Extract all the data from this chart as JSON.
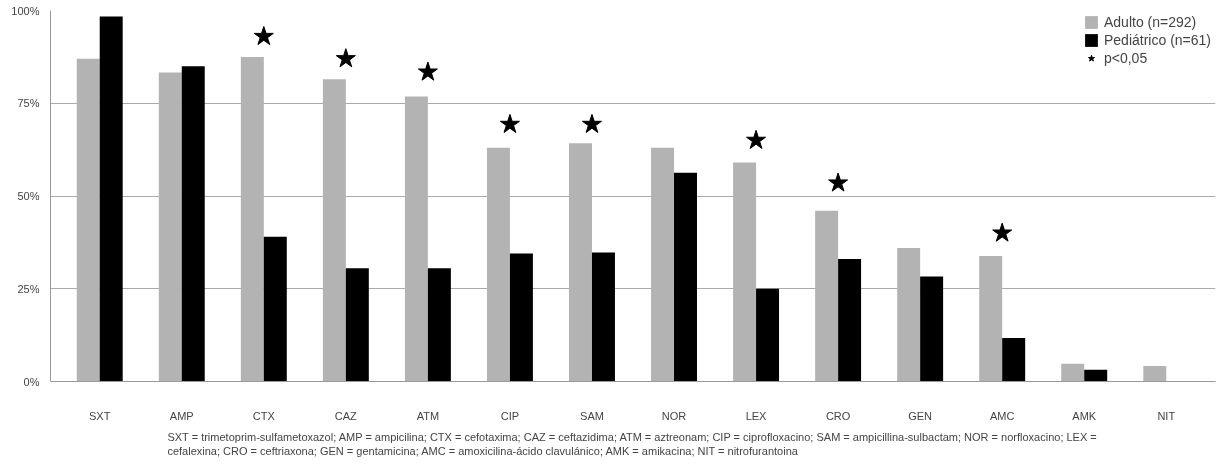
{
  "chart_data": {
    "type": "bar",
    "categories": [
      "SXT",
      "AMP",
      "CTX",
      "CAZ",
      "ATM",
      "CIP",
      "SAM",
      "NOR",
      "LEX",
      "CRO",
      "GEN",
      "AMC",
      "AMK",
      "NIT"
    ],
    "series": [
      {
        "name": "Adulto (n=292)",
        "color": "#b3b3b3",
        "values": [
          87,
          83.3,
          87.5,
          81.5,
          76.8,
          63,
          64.2,
          63,
          59,
          46,
          36,
          33.8,
          4.8,
          4.2
        ]
      },
      {
        "name": "Pediátrico (n=61)",
        "color": "#000000",
        "values": [
          98.4,
          85,
          39,
          30.5,
          30.5,
          34.5,
          34.8,
          56.3,
          25,
          33,
          28.3,
          11.7,
          3.2,
          null
        ]
      },
      {
        "name": "p<0,05",
        "type": "scatter",
        "marker": "star",
        "color": "#000000",
        "x": [
          "CTX",
          "CAZ",
          "ATM",
          "CIP",
          "SAM",
          "LEX",
          "CRO",
          "AMC"
        ],
        "values": [
          93,
          87,
          83.4,
          69.3,
          69.3,
          65,
          53.5,
          40
        ]
      }
    ],
    "ylim": [
      0,
      100
    ],
    "yticks": [
      {
        "value": 0,
        "label": "0%"
      },
      {
        "value": 25,
        "label": "25%"
      },
      {
        "value": 50,
        "label": "50%"
      },
      {
        "value": 75,
        "label": "75%"
      },
      {
        "value": 100,
        "label": "100%"
      }
    ],
    "grid": "y",
    "legend": "top right",
    "annotations": [
      "SXT = trimetoprim-sulfametoxazol; AMP = ampicilina; CTX = cefotaxima; CAZ = ceftazidima; ATM = aztreonam; CIP = ciprofloxacino; SAM = ampicillina-sulbactam; NOR = norfloxacino; LEX = cefalexina; CRO = ceftriaxona; GEN = gentamicina; AMC = amoxicilina-ácido clavulánico; AMK =  amikacina; NIT = nitrofurantoina"
    ]
  }
}
